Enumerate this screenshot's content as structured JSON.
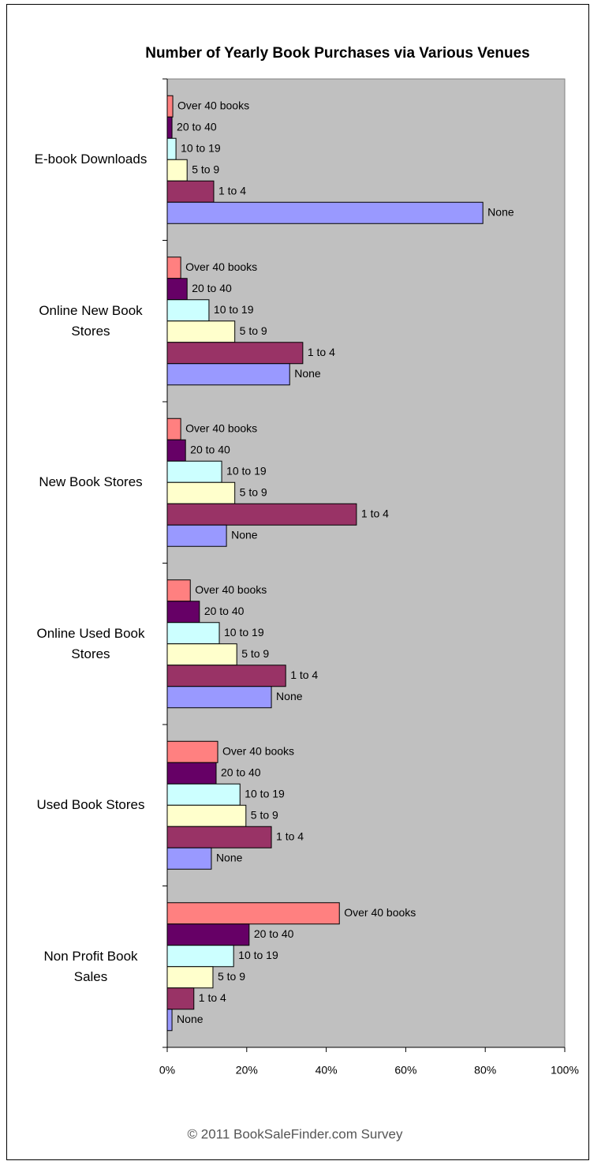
{
  "chart_data": {
    "type": "bar",
    "orientation": "horizontal",
    "title": "Number of Yearly Book Purchases via Various Venues",
    "footer": "© 2011 BookSaleFinder.com Survey",
    "categories": [
      "E-book Downloads",
      "Online New Book Stores",
      "New Book Stores",
      "Online Used Book Stores",
      "Used Book Stores",
      "Non Profit Book Sales"
    ],
    "series": [
      {
        "name": "Over 40 books",
        "color": "#ff8080",
        "values": [
          1.4,
          3.4,
          3.4,
          5.8,
          12.7,
          43.3
        ]
      },
      {
        "name": "20 to 40",
        "color": "#660066",
        "values": [
          1.2,
          5,
          4.6,
          8.1,
          12.3,
          20.6
        ]
      },
      {
        "name": "10 to 19",
        "color": "#ccffff",
        "values": [
          2.2,
          10.5,
          13.7,
          13.1,
          18.3,
          16.7
        ]
      },
      {
        "name": "5 to 9",
        "color": "#ffffcc",
        "values": [
          5,
          17,
          17,
          17.5,
          19.8,
          11.5
        ]
      },
      {
        "name": "1 to 4",
        "color": "#993366",
        "values": [
          11.7,
          34.1,
          47.6,
          29.8,
          26.2,
          6.7
        ]
      },
      {
        "name": "None",
        "color": "#9999ff",
        "values": [
          79.4,
          30.8,
          14.9,
          26.2,
          11.1,
          1.2
        ]
      }
    ],
    "xlim": [
      0,
      100
    ],
    "xticks": [
      {
        "value": 0,
        "label": "0%"
      },
      {
        "value": 20,
        "label": "20%"
      },
      {
        "value": 40,
        "label": "40%"
      },
      {
        "value": 60,
        "label": "60%"
      },
      {
        "value": 80,
        "label": "80%"
      },
      {
        "value": 100,
        "label": "100%"
      }
    ],
    "plot_background": "#c0c0c0"
  }
}
